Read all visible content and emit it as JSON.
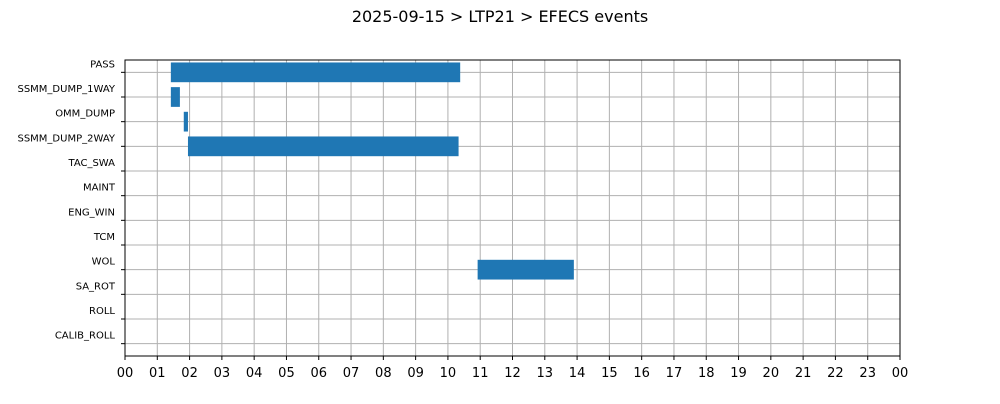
{
  "chart_data": {
    "type": "bar",
    "orientation": "horizontal-timeline",
    "title": "2025-09-15 > LTP21 > EFECS events",
    "xlabel": "",
    "ylabel": "",
    "x_unit": "hour",
    "xlim": [
      0,
      24
    ],
    "x_ticks": [
      "00",
      "01",
      "02",
      "03",
      "04",
      "05",
      "06",
      "07",
      "08",
      "09",
      "10",
      "11",
      "12",
      "13",
      "14",
      "15",
      "16",
      "17",
      "18",
      "19",
      "20",
      "21",
      "22",
      "23",
      "00"
    ],
    "categories": [
      "PASS",
      "SSMM_DUMP_1WAY",
      "OMM_DUMP",
      "SSMM_DUMP_2WAY",
      "TAC_SWA",
      "MAINT",
      "ENG_WIN",
      "TCM",
      "WOL",
      "SA_ROT",
      "ROLL",
      "CALIB_ROLL"
    ],
    "events": [
      {
        "category": "PASS",
        "start": 1.42,
        "end": 10.38
      },
      {
        "category": "SSMM_DUMP_1WAY",
        "start": 1.42,
        "end": 1.7
      },
      {
        "category": "OMM_DUMP",
        "start": 1.82,
        "end": 1.95
      },
      {
        "category": "SSMM_DUMP_2WAY",
        "start": 1.95,
        "end": 10.33
      },
      {
        "category": "WOL",
        "start": 10.92,
        "end": 13.9
      }
    ],
    "grid": true,
    "legend": "none",
    "colors": {
      "bar": "#1f77b4",
      "grid": "#b0b0b0",
      "axis": "#000000"
    }
  }
}
